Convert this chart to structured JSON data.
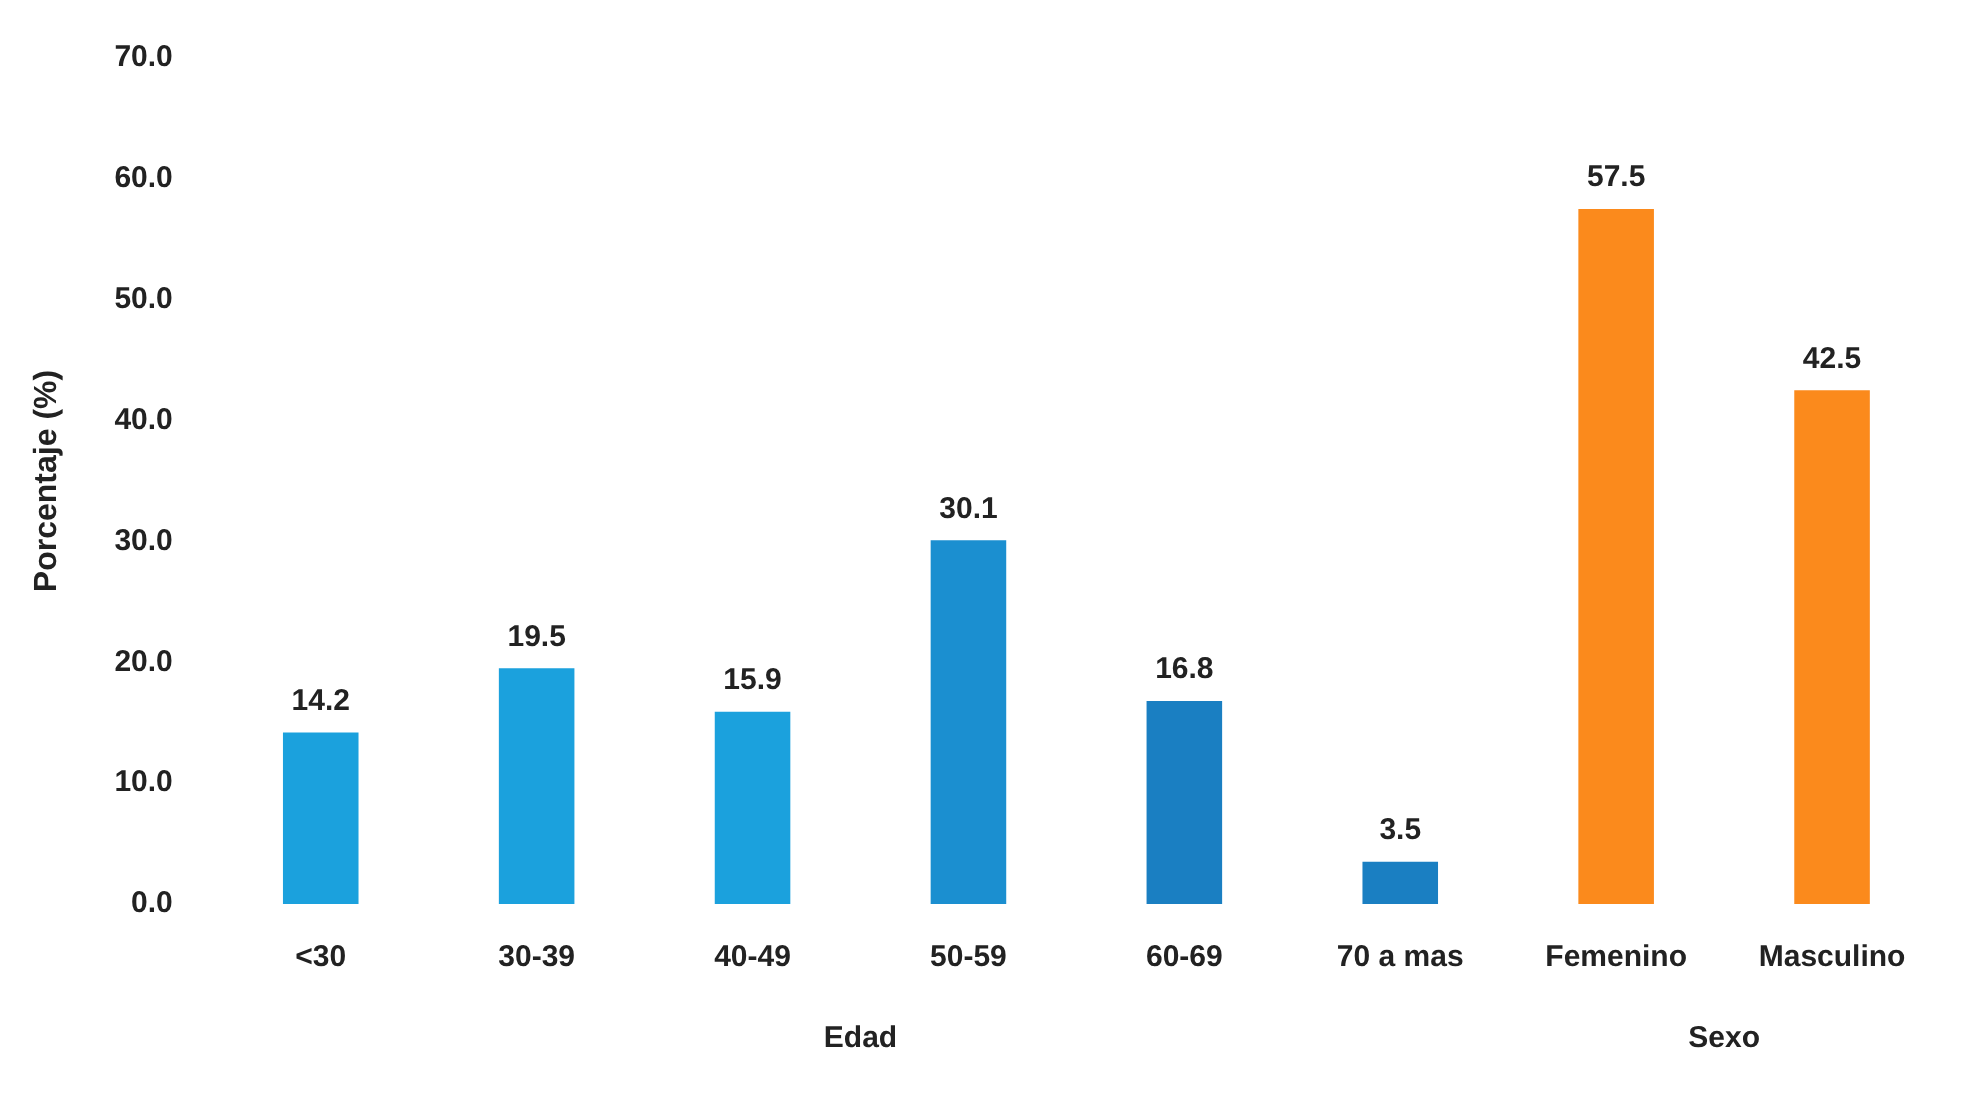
{
  "chart_data": {
    "type": "bar",
    "ylabel": "Porcentaje (%)",
    "categories": [
      "<30",
      "30-39",
      "40-49",
      "50-59",
      "60-69",
      "70 a mas",
      "Femenino",
      "Masculino"
    ],
    "values": [
      14.2,
      19.5,
      15.9,
      30.1,
      16.8,
      3.5,
      57.5,
      42.5
    ],
    "colors": [
      "#1ba1dd",
      "#1ba1dd",
      "#1ba1dd",
      "#1b8fd0",
      "#1a7fc2",
      "#1a7fc2",
      "#fb8a1c",
      "#fb8a1c"
    ],
    "ylim": [
      0,
      70
    ],
    "yticks": [
      {
        "value": 0,
        "label": "0.0"
      },
      {
        "value": 10,
        "label": "10.0"
      },
      {
        "value": 20,
        "label": "20.0"
      },
      {
        "value": 30,
        "label": "30.0"
      },
      {
        "value": 40,
        "label": "40.0"
      },
      {
        "value": 50,
        "label": "50.0"
      },
      {
        "value": 60,
        "label": "60.0"
      },
      {
        "value": 70,
        "label": "70.0"
      }
    ],
    "data_labels": true,
    "grid": false,
    "legend": false,
    "annotations": [
      "Edad",
      "Sexo"
    ]
  }
}
